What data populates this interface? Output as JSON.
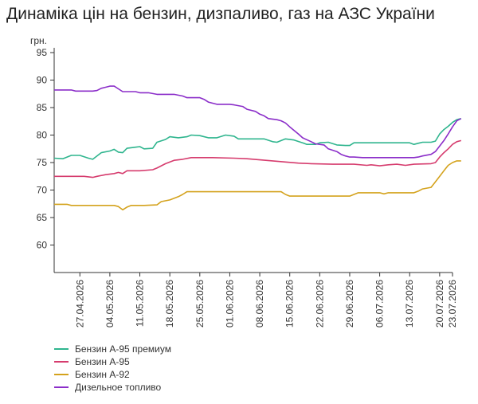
{
  "chart_data": {
    "type": "line",
    "title": "Динаміка цін на бензин, дизпаливо, газ на АЗС України",
    "ylabel": "грн.",
    "xlabel": "",
    "ylim": [
      55,
      95
    ],
    "yticks": [
      60,
      65,
      70,
      75,
      80,
      85,
      90,
      95
    ],
    "grid": false,
    "legend_position": "bottom-left",
    "x_tick_labels": [
      "27.04.2026",
      "04.05.2026",
      "11.05.2026",
      "18.05.2026",
      "25.05.2026",
      "01.06.2026",
      "08.06.2026",
      "15.06.2026",
      "22.06.2026",
      "29.06.2026",
      "06.07.2026",
      "13.07.2026",
      "20.07.2026",
      "23.07.2026"
    ],
    "x_tick_days": [
      6,
      13,
      20,
      27,
      34,
      41,
      48,
      55,
      62,
      69,
      76,
      83,
      90,
      93
    ],
    "xlim": [
      0,
      93
    ],
    "series": [
      {
        "name": "Бензин А-95 премиум",
        "color": "#2fb58e",
        "points": [
          [
            0,
            75.8
          ],
          [
            2,
            75.7
          ],
          [
            4,
            76.3
          ],
          [
            6,
            76.3
          ],
          [
            8,
            75.8
          ],
          [
            9,
            75.6
          ],
          [
            11,
            76.8
          ],
          [
            13,
            77.1
          ],
          [
            14,
            77.4
          ],
          [
            15,
            76.9
          ],
          [
            16,
            76.8
          ],
          [
            17,
            77.6
          ],
          [
            19,
            77.8
          ],
          [
            20,
            77.9
          ],
          [
            21,
            77.5
          ],
          [
            23,
            77.6
          ],
          [
            24,
            78.7
          ],
          [
            26,
            79.2
          ],
          [
            27,
            79.7
          ],
          [
            29,
            79.5
          ],
          [
            31,
            79.7
          ],
          [
            32,
            80.0
          ],
          [
            34,
            79.9
          ],
          [
            36,
            79.5
          ],
          [
            38,
            79.5
          ],
          [
            40,
            80.0
          ],
          [
            42,
            79.8
          ],
          [
            43,
            79.3
          ],
          [
            46,
            79.3
          ],
          [
            49,
            79.3
          ],
          [
            51,
            78.8
          ],
          [
            52,
            78.7
          ],
          [
            54,
            79.3
          ],
          [
            56,
            79.1
          ],
          [
            58,
            78.6
          ],
          [
            59,
            78.3
          ],
          [
            61,
            78.3
          ],
          [
            62,
            78.6
          ],
          [
            64,
            78.7
          ],
          [
            66,
            78.2
          ],
          [
            68,
            78.1
          ],
          [
            69,
            78.1
          ],
          [
            70,
            78.6
          ],
          [
            75,
            78.6
          ],
          [
            80,
            78.6
          ],
          [
            83,
            78.6
          ],
          [
            84,
            78.3
          ],
          [
            85,
            78.5
          ],
          [
            86,
            78.7
          ],
          [
            88,
            78.7
          ],
          [
            89,
            78.9
          ],
          [
            90,
            80.2
          ],
          [
            91,
            81.0
          ],
          [
            92,
            81.6
          ],
          [
            93,
            82.3
          ],
          [
            94,
            82.8
          ],
          [
            95,
            83.0
          ]
        ]
      },
      {
        "name": "Бензин А-95",
        "color": "#d63c6e",
        "points": [
          [
            0,
            72.5
          ],
          [
            4,
            72.5
          ],
          [
            7,
            72.5
          ],
          [
            9,
            72.3
          ],
          [
            10,
            72.5
          ],
          [
            12,
            72.8
          ],
          [
            14,
            73.0
          ],
          [
            15,
            73.2
          ],
          [
            16,
            73.0
          ],
          [
            17,
            73.5
          ],
          [
            20,
            73.5
          ],
          [
            23,
            73.7
          ],
          [
            24,
            74.0
          ],
          [
            26,
            74.8
          ],
          [
            28,
            75.4
          ],
          [
            30,
            75.6
          ],
          [
            32,
            75.9
          ],
          [
            37,
            75.9
          ],
          [
            42,
            75.8
          ],
          [
            45,
            75.7
          ],
          [
            48,
            75.5
          ],
          [
            51,
            75.3
          ],
          [
            54,
            75.1
          ],
          [
            57,
            74.9
          ],
          [
            60,
            74.8
          ],
          [
            65,
            74.7
          ],
          [
            70,
            74.7
          ],
          [
            73,
            74.5
          ],
          [
            74,
            74.6
          ],
          [
            76,
            74.4
          ],
          [
            78,
            74.6
          ],
          [
            80,
            74.7
          ],
          [
            82,
            74.5
          ],
          [
            84,
            74.7
          ],
          [
            88,
            74.8
          ],
          [
            89,
            75.0
          ],
          [
            90,
            76.0
          ],
          [
            91,
            76.8
          ],
          [
            92,
            77.5
          ],
          [
            93,
            78.3
          ],
          [
            94,
            78.8
          ],
          [
            95,
            79.0
          ]
        ]
      },
      {
        "name": "Бензин А-92",
        "color": "#d4a21c",
        "points": [
          [
            0,
            67.4
          ],
          [
            3,
            67.4
          ],
          [
            4,
            67.2
          ],
          [
            7,
            67.2
          ],
          [
            11,
            67.2
          ],
          [
            14,
            67.2
          ],
          [
            15,
            67.0
          ],
          [
            16,
            66.4
          ],
          [
            17,
            66.9
          ],
          [
            18,
            67.2
          ],
          [
            21,
            67.2
          ],
          [
            24,
            67.3
          ],
          [
            25,
            67.9
          ],
          [
            27,
            68.2
          ],
          [
            29,
            68.8
          ],
          [
            30,
            69.2
          ],
          [
            31,
            69.7
          ],
          [
            35,
            69.7
          ],
          [
            40,
            69.7
          ],
          [
            45,
            69.7
          ],
          [
            50,
            69.7
          ],
          [
            53,
            69.7
          ],
          [
            54,
            69.2
          ],
          [
            55,
            68.9
          ],
          [
            58,
            68.9
          ],
          [
            62,
            68.9
          ],
          [
            66,
            68.9
          ],
          [
            69,
            68.9
          ],
          [
            70,
            69.2
          ],
          [
            71,
            69.5
          ],
          [
            74,
            69.5
          ],
          [
            76,
            69.5
          ],
          [
            77,
            69.3
          ],
          [
            78,
            69.5
          ],
          [
            82,
            69.5
          ],
          [
            84,
            69.5
          ],
          [
            85,
            69.8
          ],
          [
            86,
            70.2
          ],
          [
            88,
            70.5
          ],
          [
            89,
            71.5
          ],
          [
            90,
            72.5
          ],
          [
            91,
            73.5
          ],
          [
            92,
            74.5
          ],
          [
            93,
            75.0
          ],
          [
            94,
            75.3
          ],
          [
            95,
            75.3
          ]
        ]
      },
      {
        "name": "Дизельное топливо",
        "color": "#8b2ec9",
        "points": [
          [
            0,
            88.2
          ],
          [
            4,
            88.2
          ],
          [
            5,
            88.0
          ],
          [
            9,
            88.0
          ],
          [
            10,
            88.1
          ],
          [
            11,
            88.5
          ],
          [
            12,
            88.7
          ],
          [
            13,
            88.9
          ],
          [
            14,
            88.9
          ],
          [
            15,
            88.4
          ],
          [
            16,
            87.9
          ],
          [
            19,
            87.9
          ],
          [
            20,
            87.7
          ],
          [
            22,
            87.7
          ],
          [
            24,
            87.4
          ],
          [
            27,
            87.4
          ],
          [
            28,
            87.4
          ],
          [
            30,
            87.1
          ],
          [
            31,
            86.8
          ],
          [
            34,
            86.8
          ],
          [
            35,
            86.5
          ],
          [
            36,
            86.0
          ],
          [
            38,
            85.6
          ],
          [
            41,
            85.6
          ],
          [
            42,
            85.5
          ],
          [
            44,
            85.2
          ],
          [
            45,
            84.7
          ],
          [
            47,
            84.3
          ],
          [
            48,
            83.8
          ],
          [
            49,
            83.5
          ],
          [
            50,
            83.0
          ],
          [
            52,
            82.8
          ],
          [
            53,
            82.6
          ],
          [
            54,
            82.2
          ],
          [
            55,
            81.5
          ],
          [
            57,
            80.2
          ],
          [
            58,
            79.5
          ],
          [
            60,
            78.8
          ],
          [
            61,
            78.4
          ],
          [
            63,
            78.2
          ],
          [
            64,
            77.5
          ],
          [
            66,
            77.0
          ],
          [
            67,
            76.5
          ],
          [
            68,
            76.2
          ],
          [
            69,
            76.0
          ],
          [
            70,
            76.0
          ],
          [
            72,
            75.9
          ],
          [
            75,
            75.9
          ],
          [
            78,
            75.9
          ],
          [
            80,
            75.9
          ],
          [
            84,
            75.9
          ],
          [
            85,
            76.0
          ],
          [
            86,
            76.2
          ],
          [
            88,
            76.5
          ],
          [
            89,
            77.0
          ],
          [
            90,
            78.0
          ],
          [
            91,
            79.0
          ],
          [
            92,
            80.2
          ],
          [
            93,
            81.5
          ],
          [
            94,
            82.6
          ],
          [
            95,
            83.0
          ]
        ]
      }
    ]
  }
}
